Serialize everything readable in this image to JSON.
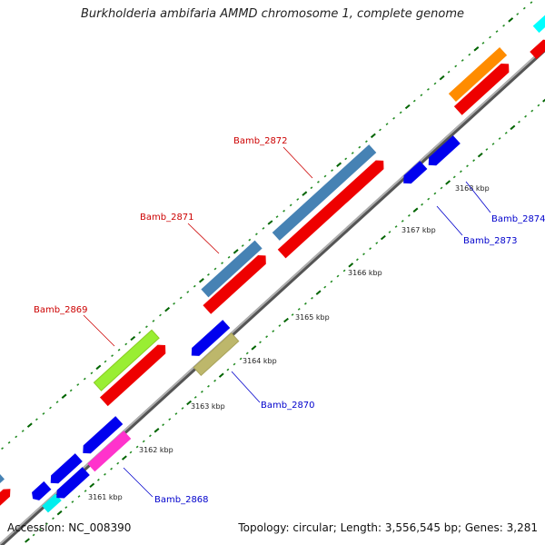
{
  "title": "Burkholderia ambifaria AMMD chromosome 1, complete genome",
  "footer": {
    "accession": "Accession: NC_008390",
    "summary": "Topology: circular; Length: 3,556,545 bp; Genes: 3,281"
  },
  "scale": {
    "unit": "kbp",
    "ticks": [
      {
        "text": "3161 kbp"
      },
      {
        "text": "3162 kbp"
      },
      {
        "text": "3163 kbp"
      },
      {
        "text": "3164 kbp"
      },
      {
        "text": "3165 kbp"
      },
      {
        "text": "3166 kbp"
      },
      {
        "text": "3167 kbp"
      },
      {
        "text": "3168 kbp"
      }
    ]
  },
  "genes": [
    {
      "name": "Bamb_2869",
      "color": "#cc0000"
    },
    {
      "name": "Bamb_2871",
      "color": "#cc0000"
    },
    {
      "name": "Bamb_2872",
      "color": "#cc0000"
    },
    {
      "name": "Bamb_2868",
      "color": "#0000cc"
    },
    {
      "name": "Bamb_2870",
      "color": "#0000cc"
    },
    {
      "name": "Bamb_2873",
      "color": "#0000cc"
    },
    {
      "name": "Bamb_2874",
      "color": "#0000cc"
    }
  ],
  "colors": {
    "backbone": "#8c8c8c",
    "cds_forward": "#ff0000",
    "cds_reverse": "#0000ee",
    "gene_steelblue": "#4682b4",
    "gene_orange": "#ff8c00",
    "gene_lime": "#99ff33",
    "gene_magenta": "#ff33cc",
    "gene_cyan": "#00ffff",
    "gene_khaki": "#bdb76b",
    "tick_major": "#006400",
    "tick_minor": "#228b22"
  }
}
